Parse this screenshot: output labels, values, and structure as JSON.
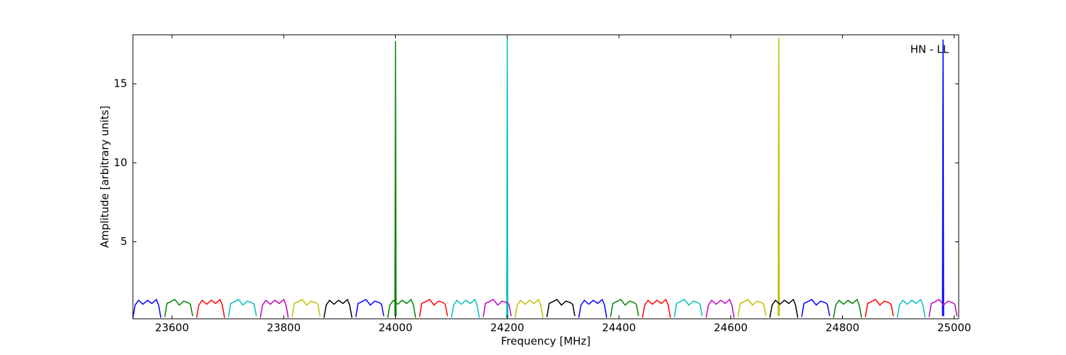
{
  "chart_data": {
    "type": "line",
    "xlabel": "Frequency [MHz]",
    "ylabel": "Amplitude [arbitrary units]",
    "annotation": "HN - LL",
    "xlim": [
      23530,
      25008
    ],
    "xticks": [
      23600,
      23800,
      24000,
      24200,
      24400,
      24600,
      24800,
      25000
    ],
    "ylim": [
      0.13,
      18.1
    ],
    "yticks": [
      5,
      10,
      15
    ],
    "series": [
      {
        "color": "#0000ff",
        "x": [
          23530,
          23534,
          23540,
          23548,
          23556,
          23564,
          23572,
          23576,
          23580,
          null,
          23929,
          23933,
          23939,
          23947,
          23955,
          23963,
          23971,
          23975,
          23979,
          null,
          24328,
          24332,
          24338,
          24346,
          24354,
          24362,
          24370,
          24374,
          24378,
          null,
          24727,
          24731,
          24737,
          24745,
          24753,
          24761,
          24769,
          24773,
          24777,
          null,
          24979,
          24980,
          24981
        ],
        "values": [
          0.2,
          1.0,
          1.3,
          1.05,
          1.3,
          1.1,
          1.35,
          1.0,
          0.2,
          null,
          0.25,
          1.1,
          1.2,
          1.35,
          1.0,
          1.25,
          1.15,
          1.05,
          0.3,
          null,
          0.2,
          1.0,
          1.3,
          1.05,
          1.3,
          1.1,
          1.35,
          1.0,
          0.2,
          null,
          0.25,
          1.1,
          1.2,
          1.35,
          1.0,
          1.25,
          1.15,
          1.05,
          0.3,
          null,
          0.3,
          17.8,
          0.3
        ]
      },
      {
        "color": "#008000",
        "x": [
          23587,
          23591,
          23597,
          23605,
          23613,
          23621,
          23629,
          23633,
          23637,
          null,
          23986,
          23990,
          23996,
          24004,
          24012,
          24020,
          24028,
          24032,
          24036,
          null,
          24385,
          24389,
          24395,
          24403,
          24411,
          24419,
          24427,
          24431,
          24435,
          null,
          24784,
          24788,
          24794,
          24802,
          24810,
          24818,
          24826,
          24830,
          24834,
          null,
          23999,
          24000,
          24001
        ],
        "values": [
          0.25,
          1.1,
          1.2,
          1.35,
          1.0,
          1.25,
          1.15,
          1.05,
          0.3,
          null,
          0.2,
          1.0,
          1.3,
          1.05,
          1.3,
          1.1,
          1.35,
          1.0,
          0.2,
          null,
          0.25,
          1.1,
          1.2,
          1.35,
          1.0,
          1.25,
          1.15,
          1.05,
          0.3,
          null,
          0.2,
          1.0,
          1.3,
          1.05,
          1.3,
          1.1,
          1.35,
          1.0,
          0.2,
          null,
          0.3,
          17.7,
          0.3
        ]
      },
      {
        "color": "#ff0000",
        "x": [
          23644,
          23648,
          23654,
          23662,
          23670,
          23678,
          23686,
          23690,
          23694,
          null,
          24043,
          24047,
          24053,
          24061,
          24069,
          24077,
          24085,
          24089,
          24093,
          null,
          24442,
          24446,
          24452,
          24460,
          24468,
          24476,
          24484,
          24488,
          24492,
          null,
          24841,
          24845,
          24851,
          24859,
          24867,
          24875,
          24883,
          24887,
          24891
        ],
        "values": [
          0.2,
          1.0,
          1.3,
          1.05,
          1.3,
          1.1,
          1.35,
          1.0,
          0.2,
          null,
          0.25,
          1.1,
          1.2,
          1.35,
          1.0,
          1.25,
          1.15,
          1.05,
          0.3,
          null,
          0.2,
          1.0,
          1.3,
          1.05,
          1.3,
          1.1,
          1.35,
          1.0,
          0.2,
          null,
          0.25,
          1.1,
          1.2,
          1.35,
          1.0,
          1.25,
          1.15,
          1.05,
          0.3
        ]
      },
      {
        "color": "#00bfbf",
        "x": [
          23701,
          23705,
          23711,
          23719,
          23727,
          23735,
          23743,
          23747,
          23751,
          null,
          24100,
          24104,
          24110,
          24118,
          24126,
          24134,
          24142,
          24146,
          24150,
          null,
          24499,
          24503,
          24509,
          24517,
          24525,
          24533,
          24541,
          24545,
          24549,
          null,
          24898,
          24902,
          24908,
          24916,
          24924,
          24932,
          24940,
          24944,
          24948,
          null,
          24199,
          24200,
          24201
        ],
        "values": [
          0.25,
          1.1,
          1.2,
          1.35,
          1.0,
          1.25,
          1.15,
          1.05,
          0.3,
          null,
          0.2,
          1.0,
          1.3,
          1.05,
          1.3,
          1.1,
          1.35,
          1.0,
          0.2,
          null,
          0.25,
          1.1,
          1.2,
          1.35,
          1.0,
          1.25,
          1.15,
          1.05,
          0.3,
          null,
          0.2,
          1.0,
          1.3,
          1.05,
          1.3,
          1.1,
          1.35,
          1.0,
          0.2,
          null,
          0.2,
          17.9,
          0.2
        ]
      },
      {
        "color": "#bf00bf",
        "x": [
          23758,
          23762,
          23768,
          23776,
          23784,
          23792,
          23800,
          23804,
          23808,
          null,
          24157,
          24161,
          24167,
          24175,
          24183,
          24191,
          24199,
          24203,
          24207,
          null,
          24556,
          24560,
          24566,
          24574,
          24582,
          24590,
          24598,
          24602,
          24606,
          null,
          24955,
          24959,
          24965,
          24973,
          24981,
          24989,
          24997,
          25001,
          25005
        ],
        "values": [
          0.2,
          1.0,
          1.3,
          1.05,
          1.3,
          1.1,
          1.35,
          1.0,
          0.2,
          null,
          0.25,
          1.1,
          1.2,
          1.35,
          1.0,
          1.25,
          1.15,
          1.05,
          0.3,
          null,
          0.2,
          1.0,
          1.3,
          1.05,
          1.3,
          1.1,
          1.35,
          1.0,
          0.2,
          null,
          0.25,
          1.1,
          1.2,
          1.35,
          1.0,
          1.25,
          1.15,
          1.05,
          0.3
        ]
      },
      {
        "color": "#bfbf00",
        "x": [
          23815,
          23819,
          23825,
          23833,
          23841,
          23849,
          23857,
          23861,
          23865,
          null,
          24214,
          24218,
          24224,
          24232,
          24240,
          24248,
          24256,
          24260,
          24264,
          null,
          24613,
          24617,
          24623,
          24631,
          24639,
          24647,
          24655,
          24659,
          24663,
          null,
          24685,
          24686,
          24687
        ],
        "values": [
          0.25,
          1.1,
          1.2,
          1.35,
          1.0,
          1.25,
          1.15,
          1.05,
          0.3,
          null,
          0.2,
          1.0,
          1.3,
          1.05,
          1.3,
          1.1,
          1.35,
          1.0,
          0.2,
          null,
          0.25,
          1.1,
          1.2,
          1.35,
          1.0,
          1.25,
          1.15,
          1.05,
          0.3,
          null,
          0.3,
          17.9,
          0.3
        ]
      },
      {
        "color": "#000000",
        "x": [
          23872,
          23876,
          23882,
          23890,
          23898,
          23906,
          23914,
          23918,
          23922,
          null,
          24271,
          24275,
          24281,
          24289,
          24297,
          24305,
          24313,
          24317,
          24321,
          null,
          24670,
          24674,
          24680,
          24688,
          24696,
          24704,
          24712,
          24716,
          24720
        ],
        "values": [
          0.2,
          1.0,
          1.3,
          1.05,
          1.3,
          1.1,
          1.35,
          1.0,
          0.2,
          null,
          0.25,
          1.1,
          1.2,
          1.35,
          1.0,
          1.25,
          1.15,
          1.05,
          0.3,
          null,
          0.2,
          1.0,
          1.3,
          1.05,
          1.3,
          1.1,
          1.35,
          1.0,
          0.2
        ]
      }
    ]
  }
}
